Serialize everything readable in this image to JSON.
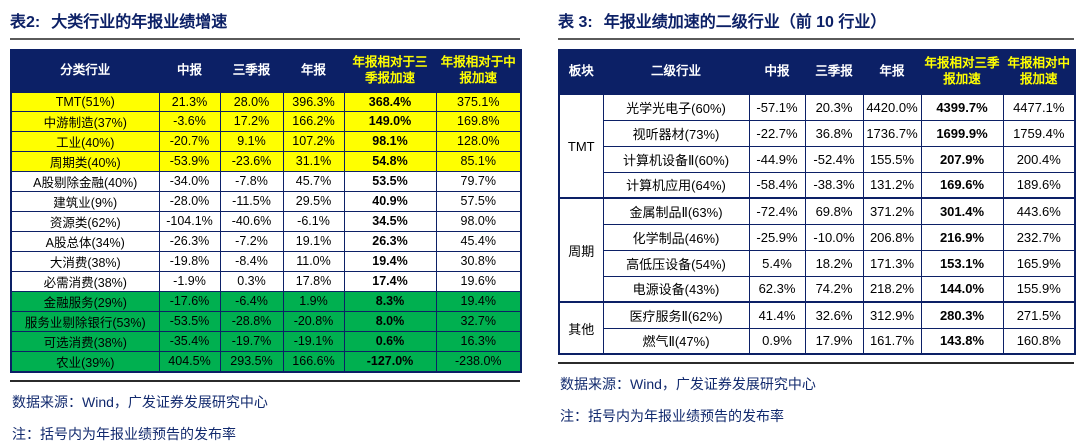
{
  "colors": {
    "navy": "#0c2066",
    "yellow": "#ffff00",
    "green": "#00b050"
  },
  "table2": {
    "title_label": "表2:",
    "title_text": "大类行业的年报业绩增速",
    "headers": [
      "分类行业",
      "中报",
      "三季报",
      "年报",
      "年报相对于三季报加速",
      "年报相对于中报加速"
    ],
    "rows": [
      [
        "TMT(51%)",
        "21.3%",
        "28.0%",
        "396.3%",
        "368.4%",
        "375.1%"
      ],
      [
        "中游制造(37%)",
        "-3.6%",
        "17.2%",
        "166.2%",
        "149.0%",
        "169.8%"
      ],
      [
        "工业(40%)",
        "-20.7%",
        "9.1%",
        "107.2%",
        "98.1%",
        "128.0%"
      ],
      [
        "周期类(40%)",
        "-53.9%",
        "-23.6%",
        "31.1%",
        "54.8%",
        "85.1%"
      ],
      [
        "A股剔除金融(40%)",
        "-34.0%",
        "-7.8%",
        "45.7%",
        "53.5%",
        "79.7%"
      ],
      [
        "建筑业(9%)",
        "-28.0%",
        "-11.5%",
        "29.5%",
        "40.9%",
        "57.5%"
      ],
      [
        "资源类(62%)",
        "-104.1%",
        "-40.6%",
        "-6.1%",
        "34.5%",
        "98.0%"
      ],
      [
        "A股总体(34%)",
        "-26.3%",
        "-7.2%",
        "19.1%",
        "26.3%",
        "45.4%"
      ],
      [
        "大消费(38%)",
        "-19.8%",
        "-8.4%",
        "11.0%",
        "19.4%",
        "30.8%"
      ],
      [
        "必需消费(38%)",
        "-1.9%",
        "0.3%",
        "17.8%",
        "17.4%",
        "19.6%"
      ],
      [
        "金融服务(29%)",
        "-17.6%",
        "-6.4%",
        "1.9%",
        "8.3%",
        "19.4%"
      ],
      [
        "服务业剔除银行(53%)",
        "-53.5%",
        "-28.8%",
        "-20.8%",
        "8.0%",
        "32.7%"
      ],
      [
        "可选消费(38%)",
        "-35.4%",
        "-19.7%",
        "-19.1%",
        "0.6%",
        "16.3%"
      ],
      [
        "农业(39%)",
        "404.5%",
        "293.5%",
        "166.6%",
        "-127.0%",
        "-238.0%"
      ]
    ],
    "row_bg": [
      "yellow",
      "yellow",
      "yellow",
      "yellow",
      "white",
      "white",
      "white",
      "white",
      "white",
      "white",
      "green",
      "green",
      "green",
      "green"
    ],
    "source": "数据来源：Wind，广发证券发展研究中心",
    "note": "注：括号内为年报业绩预告的发布率"
  },
  "table3": {
    "title_label": "表 3:",
    "title_text": "年报业绩加速的二级行业（前 10 行业）",
    "headers": [
      "板块",
      "二级行业",
      "中报",
      "三季报",
      "年报",
      "年报相对三季报加速",
      "年报相对中报加速"
    ],
    "groups": [
      {
        "name": "TMT",
        "rows": [
          [
            "光学光电子(60%)",
            "-57.1%",
            "20.3%",
            "4420.0%",
            "4399.7%",
            "4477.1%"
          ],
          [
            "视听器材(73%)",
            "-22.7%",
            "36.8%",
            "1736.7%",
            "1699.9%",
            "1759.4%"
          ],
          [
            "计算机设备Ⅱ(60%)",
            "-44.9%",
            "-52.4%",
            "155.5%",
            "207.9%",
            "200.4%"
          ],
          [
            "计算机应用(64%)",
            "-58.4%",
            "-38.3%",
            "131.2%",
            "169.6%",
            "189.6%"
          ]
        ]
      },
      {
        "name": "周期",
        "rows": [
          [
            "金属制品Ⅱ(63%)",
            "-72.4%",
            "69.8%",
            "371.2%",
            "301.4%",
            "443.6%"
          ],
          [
            "化学制品(46%)",
            "-25.9%",
            "-10.0%",
            "206.8%",
            "216.9%",
            "232.7%"
          ],
          [
            "高低压设备(54%)",
            "5.4%",
            "18.2%",
            "171.3%",
            "153.1%",
            "165.9%"
          ],
          [
            "电源设备(43%)",
            "62.3%",
            "74.2%",
            "218.2%",
            "144.0%",
            "155.9%"
          ]
        ]
      },
      {
        "name": "其他",
        "rows": [
          [
            "医疗服务Ⅱ(62%)",
            "41.4%",
            "32.6%",
            "312.9%",
            "280.3%",
            "271.5%"
          ],
          [
            "燃气Ⅱ(47%)",
            "0.9%",
            "17.9%",
            "161.7%",
            "143.8%",
            "160.8%"
          ]
        ]
      }
    ],
    "source": "数据来源：Wind，广发证券发展研究中心",
    "note": "注：括号内为年报业绩预告的发布率"
  }
}
